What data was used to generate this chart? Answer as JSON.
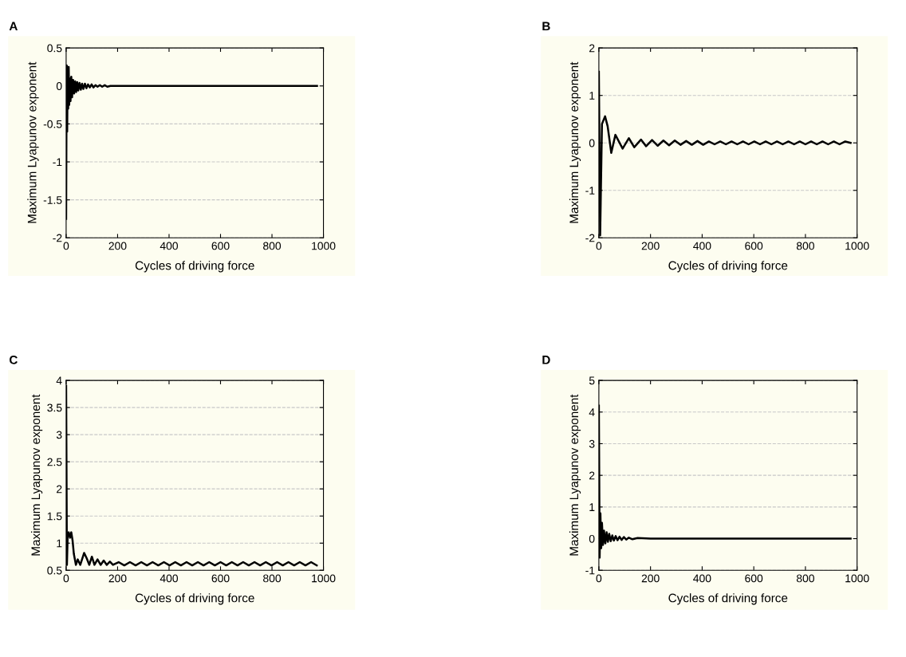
{
  "chart_data": [
    {
      "type": "line",
      "title": "A",
      "xlabel": "Cycles of driving force",
      "ylabel": "Maximum Lyapunov exponent",
      "grid": "y",
      "xlim": [
        0,
        1000
      ],
      "xticks": [
        0,
        200,
        400,
        600,
        800,
        1000
      ],
      "ylim": [
        -2,
        0.5
      ],
      "yticks": [
        -2,
        -1.5,
        -1,
        -0.5,
        0,
        0.5
      ],
      "series": [
        {
          "color": "#000000",
          "x": [
            0,
            2,
            4,
            6,
            8,
            10,
            12,
            14,
            17,
            20,
            23,
            27,
            31,
            35,
            39,
            43,
            47,
            52,
            57,
            62,
            67,
            73,
            79,
            85,
            92,
            99,
            106,
            114,
            122,
            131,
            140,
            150,
            160,
            172,
            185,
            200,
            250,
            400,
            600,
            800,
            975
          ],
          "values": [
            -1.75,
            0.27,
            -0.6,
            0.25,
            -0.3,
            0.25,
            -0.25,
            0.1,
            -0.2,
            0.12,
            -0.15,
            0.08,
            -0.1,
            0.06,
            -0.08,
            0.05,
            -0.06,
            0.04,
            -0.05,
            0.03,
            -0.04,
            0.03,
            -0.03,
            0.02,
            -0.02,
            0.02,
            -0.02,
            0.01,
            -0.01,
            0.01,
            -0.01,
            0.01,
            -0.01,
            0,
            0,
            0,
            0,
            0,
            0,
            0,
            0
          ]
        }
      ]
    },
    {
      "type": "line",
      "title": "B",
      "xlabel": "Cycles of driving force",
      "ylabel": "Maximum Lyapunov exponent",
      "grid": "y",
      "xlim": [
        0,
        1000
      ],
      "xticks": [
        0,
        200,
        400,
        600,
        800,
        1000
      ],
      "ylim": [
        -2,
        2
      ],
      "yticks": [
        -2,
        -1,
        0,
        1,
        2
      ],
      "series": [
        {
          "color": "#000000",
          "x": [
            0,
            5,
            12,
            24,
            34,
            48,
            64,
            92,
            116,
            137,
            163,
            183,
            206,
            228,
            250,
            272,
            294,
            316,
            338,
            360,
            382,
            404,
            426,
            448,
            470,
            492,
            514,
            536,
            558,
            580,
            602,
            624,
            646,
            668,
            690,
            712,
            734,
            756,
            778,
            800,
            822,
            844,
            866,
            888,
            910,
            932,
            954,
            975
          ],
          "values": [
            1.5,
            -1.95,
            0.4,
            0.56,
            0.35,
            -0.21,
            0.17,
            -0.12,
            0.1,
            -0.09,
            0.07,
            -0.07,
            0.06,
            -0.06,
            0.05,
            -0.05,
            0.05,
            -0.04,
            0.04,
            -0.04,
            0.04,
            -0.04,
            0.03,
            -0.03,
            0.03,
            -0.03,
            0.03,
            -0.03,
            0.03,
            -0.03,
            0.03,
            -0.03,
            0.03,
            -0.03,
            0.03,
            -0.03,
            0.03,
            -0.03,
            0.03,
            -0.03,
            0.03,
            -0.03,
            0.03,
            -0.03,
            0.03,
            -0.03,
            0.03,
            0
          ]
        }
      ]
    },
    {
      "type": "line",
      "title": "C",
      "xlabel": "Cycles of driving force",
      "ylabel": "Maximum Lyapunov exponent",
      "grid": "y",
      "xlim": [
        0,
        1000
      ],
      "xticks": [
        0,
        200,
        400,
        600,
        800,
        1000
      ],
      "ylim": [
        0.5,
        4
      ],
      "yticks": [
        0.5,
        1,
        1.5,
        2,
        2.5,
        3,
        3.5,
        4
      ],
      "series": [
        {
          "color": "#000000",
          "x": [
            0,
            3,
            6,
            10,
            15,
            20,
            25,
            30,
            38,
            45,
            55,
            70,
            80,
            90,
            100,
            110,
            122,
            134,
            146,
            158,
            170,
            182,
            204,
            226,
            248,
            270,
            292,
            314,
            336,
            358,
            380,
            402,
            424,
            446,
            468,
            490,
            512,
            534,
            556,
            578,
            600,
            622,
            644,
            666,
            688,
            710,
            732,
            754,
            776,
            798,
            820,
            842,
            864,
            886,
            908,
            930,
            952,
            974
          ],
          "values": [
            3.9,
            0.6,
            1.15,
            1.2,
            1.1,
            1.2,
            1.05,
            0.8,
            0.6,
            0.7,
            0.6,
            0.82,
            0.72,
            0.6,
            0.75,
            0.6,
            0.7,
            0.6,
            0.68,
            0.6,
            0.66,
            0.6,
            0.65,
            0.59,
            0.65,
            0.59,
            0.65,
            0.59,
            0.65,
            0.59,
            0.65,
            0.59,
            0.65,
            0.59,
            0.65,
            0.59,
            0.65,
            0.59,
            0.65,
            0.59,
            0.65,
            0.59,
            0.65,
            0.59,
            0.65,
            0.59,
            0.65,
            0.59,
            0.65,
            0.59,
            0.65,
            0.59,
            0.65,
            0.59,
            0.65,
            0.59,
            0.65,
            0.59
          ]
        }
      ]
    },
    {
      "type": "line",
      "title": "D",
      "xlabel": "Cycles of driving force",
      "ylabel": "Maximum Lyapunov exponent",
      "grid": "y",
      "xlim": [
        0,
        1000
      ],
      "xticks": [
        0,
        200,
        400,
        600,
        800,
        1000
      ],
      "ylim": [
        -1,
        5
      ],
      "yticks": [
        -1,
        0,
        1,
        2,
        3,
        4,
        5
      ],
      "series": [
        {
          "color": "#000000",
          "x": [
            0,
            3,
            6,
            9,
            12,
            16,
            20,
            25,
            30,
            35,
            40,
            46,
            52,
            58,
            65,
            72,
            80,
            88,
            97,
            106,
            116,
            130,
            150,
            200,
            300,
            400,
            500,
            600,
            700,
            800,
            900,
            975
          ],
          "values": [
            4.2,
            -0.6,
            0.8,
            -0.3,
            0.5,
            -0.2,
            0.25,
            -0.15,
            0.2,
            -0.1,
            0.15,
            -0.08,
            0.1,
            -0.06,
            0.08,
            -0.05,
            0.06,
            -0.04,
            0.05,
            -0.03,
            0.03,
            -0.02,
            0.02,
            0,
            0,
            0,
            0,
            0,
            0,
            0,
            0,
            0
          ]
        }
      ]
    }
  ]
}
